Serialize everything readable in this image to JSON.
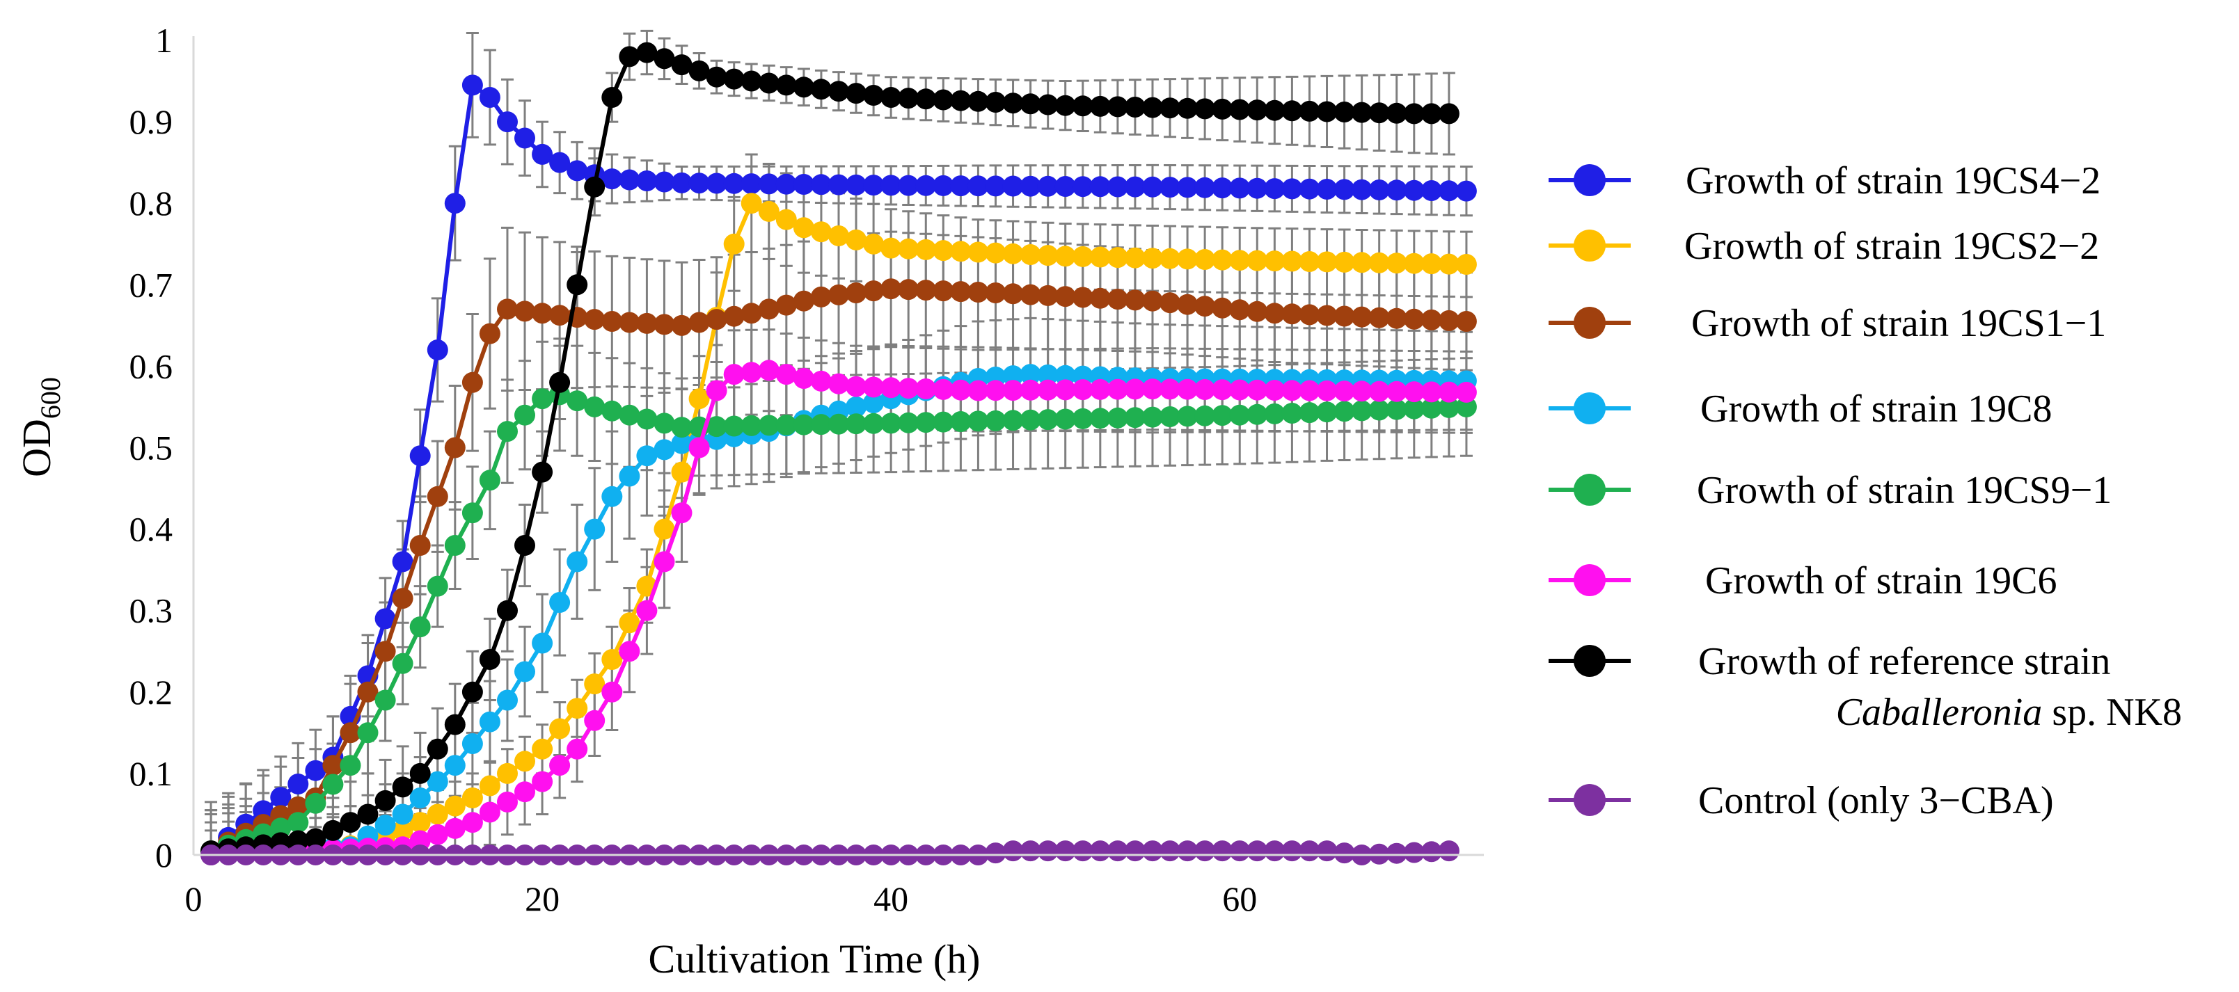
{
  "chart_data": {
    "type": "line",
    "title": "",
    "xlabel": "Cultivation Time (h)",
    "ylabel": {
      "main": "OD",
      "sub": "600"
    },
    "xlim": [
      0,
      74
    ],
    "ylim": [
      0,
      1
    ],
    "xticks": [
      "0",
      "20",
      "40",
      "60"
    ],
    "xtick_values": [
      0,
      20,
      40,
      60
    ],
    "yticks": [
      "0",
      "0.1",
      "0.2",
      "0.3",
      "0.4",
      "0.5",
      "0.6",
      "0.7",
      "0.8",
      "0.9",
      "1"
    ],
    "ytick_values": [
      0,
      0.1,
      0.2,
      0.3,
      0.4,
      0.5,
      0.6,
      0.7,
      0.8,
      0.9,
      1.0
    ],
    "grid": false,
    "legend_position": "right",
    "series": [
      {
        "name": "Growth of strain 19CS4−2",
        "color": "#1f1fe6",
        "points": [
          [
            1,
            0.005
          ],
          [
            8,
            0.12
          ],
          [
            10,
            0.22
          ],
          [
            12,
            0.36
          ],
          [
            14,
            0.62
          ],
          [
            15,
            0.8
          ],
          [
            16,
            0.945
          ],
          [
            17,
            0.93
          ],
          [
            18,
            0.9
          ],
          [
            20,
            0.86
          ],
          [
            22,
            0.84
          ],
          [
            24,
            0.83
          ],
          [
            28,
            0.825
          ],
          [
            40,
            0.822
          ],
          [
            55,
            0.82
          ],
          [
            73,
            0.815
          ]
        ],
        "error": [
          [
            12,
            0.05
          ],
          [
            15,
            0.07
          ],
          [
            20,
            0.04
          ],
          [
            28,
            0.02
          ],
          [
            45,
            0.025
          ],
          [
            73,
            0.03
          ]
        ]
      },
      {
        "name": "Growth of strain 19CS2−2",
        "color": "#ffc000",
        "points": [
          [
            1,
            0.0
          ],
          [
            8,
            0.005
          ],
          [
            12,
            0.03
          ],
          [
            16,
            0.07
          ],
          [
            20,
            0.13
          ],
          [
            22,
            0.18
          ],
          [
            24,
            0.24
          ],
          [
            26,
            0.33
          ],
          [
            28,
            0.47
          ],
          [
            29,
            0.56
          ],
          [
            30,
            0.66
          ],
          [
            31,
            0.75
          ],
          [
            32,
            0.8
          ],
          [
            33,
            0.79
          ],
          [
            35,
            0.77
          ],
          [
            40,
            0.745
          ],
          [
            50,
            0.735
          ],
          [
            60,
            0.73
          ],
          [
            73,
            0.725
          ]
        ],
        "error": [
          [
            20,
            0.03
          ],
          [
            28,
            0.05
          ],
          [
            32,
            0.06
          ],
          [
            45,
            0.04
          ],
          [
            60,
            0.04
          ],
          [
            73,
            0.04
          ]
        ]
      },
      {
        "name": "Growth of strain 19CS1−1",
        "color": "#a0400e",
        "points": [
          [
            1,
            0.005
          ],
          [
            7,
            0.07
          ],
          [
            9,
            0.15
          ],
          [
            11,
            0.25
          ],
          [
            13,
            0.38
          ],
          [
            15,
            0.5
          ],
          [
            16,
            0.58
          ],
          [
            17,
            0.64
          ],
          [
            18,
            0.67
          ],
          [
            20,
            0.665
          ],
          [
            24,
            0.655
          ],
          [
            28,
            0.65
          ],
          [
            32,
            0.665
          ],
          [
            36,
            0.685
          ],
          [
            40,
            0.695
          ],
          [
            46,
            0.69
          ],
          [
            55,
            0.68
          ],
          [
            62,
            0.665
          ],
          [
            73,
            0.655
          ]
        ],
        "error": [
          [
            13,
            0.06
          ],
          [
            18,
            0.1
          ],
          [
            24,
            0.08
          ],
          [
            40,
            0.07
          ],
          [
            60,
            0.06
          ],
          [
            73,
            0.06
          ]
        ]
      },
      {
        "name": "Growth of strain 19C8",
        "color": "#10b0f0",
        "points": [
          [
            1,
            0.0
          ],
          [
            9,
            0.01
          ],
          [
            12,
            0.05
          ],
          [
            15,
            0.11
          ],
          [
            18,
            0.19
          ],
          [
            20,
            0.26
          ],
          [
            22,
            0.36
          ],
          [
            24,
            0.44
          ],
          [
            26,
            0.49
          ],
          [
            28,
            0.505
          ],
          [
            30,
            0.51
          ],
          [
            33,
            0.52
          ],
          [
            36,
            0.54
          ],
          [
            40,
            0.56
          ],
          [
            45,
            0.585
          ],
          [
            48,
            0.59
          ],
          [
            55,
            0.585
          ],
          [
            73,
            0.582
          ]
        ],
        "error": [
          [
            18,
            0.05
          ],
          [
            24,
            0.08
          ],
          [
            30,
            0.06
          ],
          [
            45,
            0.07
          ],
          [
            73,
            0.06
          ]
        ]
      },
      {
        "name": "Growth of strain 19CS9−1",
        "color": "#1fb050",
        "points": [
          [
            1,
            0.005
          ],
          [
            6,
            0.04
          ],
          [
            9,
            0.11
          ],
          [
            11,
            0.19
          ],
          [
            13,
            0.28
          ],
          [
            15,
            0.38
          ],
          [
            17,
            0.46
          ],
          [
            18,
            0.52
          ],
          [
            20,
            0.56
          ],
          [
            21,
            0.565
          ],
          [
            23,
            0.55
          ],
          [
            26,
            0.535
          ],
          [
            28,
            0.525
          ],
          [
            32,
            0.527
          ],
          [
            40,
            0.53
          ],
          [
            50,
            0.535
          ],
          [
            60,
            0.54
          ],
          [
            73,
            0.55
          ]
        ],
        "error": [
          [
            14,
            0.05
          ],
          [
            20,
            0.07
          ],
          [
            28,
            0.06
          ],
          [
            45,
            0.06
          ],
          [
            73,
            0.06
          ]
        ]
      },
      {
        "name": "Growth of strain 19C6",
        "color": "#ff10ef",
        "points": [
          [
            1,
            0.0
          ],
          [
            12,
            0.01
          ],
          [
            16,
            0.04
          ],
          [
            20,
            0.09
          ],
          [
            22,
            0.13
          ],
          [
            24,
            0.2
          ],
          [
            26,
            0.3
          ],
          [
            28,
            0.42
          ],
          [
            29,
            0.5
          ],
          [
            30,
            0.57
          ],
          [
            31,
            0.59
          ],
          [
            33,
            0.595
          ],
          [
            35,
            0.585
          ],
          [
            38,
            0.575
          ],
          [
            45,
            0.57
          ],
          [
            55,
            0.572
          ],
          [
            73,
            0.568
          ]
        ],
        "error": [
          [
            22,
            0.04
          ],
          [
            28,
            0.06
          ],
          [
            33,
            0.05
          ],
          [
            50,
            0.05
          ],
          [
            73,
            0.05
          ]
        ]
      },
      {
        "name": "Growth of reference strain Caballeronia sp. NK8",
        "color": "#000000",
        "points": [
          [
            1,
            0.005
          ],
          [
            7,
            0.02
          ],
          [
            10,
            0.05
          ],
          [
            13,
            0.1
          ],
          [
            15,
            0.16
          ],
          [
            17,
            0.24
          ],
          [
            18,
            0.3
          ],
          [
            19,
            0.38
          ],
          [
            20,
            0.47
          ],
          [
            21,
            0.58
          ],
          [
            22,
            0.7
          ],
          [
            23,
            0.82
          ],
          [
            24,
            0.93
          ],
          [
            25,
            0.98
          ],
          [
            26,
            0.985
          ],
          [
            28,
            0.97
          ],
          [
            30,
            0.955
          ],
          [
            34,
            0.945
          ],
          [
            40,
            0.93
          ],
          [
            50,
            0.92
          ],
          [
            60,
            0.915
          ],
          [
            70,
            0.91
          ],
          [
            72,
            0.91
          ]
        ],
        "error": [
          [
            20,
            0.05
          ],
          [
            24,
            0.03
          ],
          [
            30,
            0.02
          ],
          [
            50,
            0.03
          ],
          [
            72,
            0.05
          ]
        ]
      },
      {
        "name": "Control (only 3−CBA)",
        "color": "#7d30a0",
        "points": [
          [
            1,
            0.0
          ],
          [
            20,
            0.0
          ],
          [
            45,
            0.0
          ],
          [
            47,
            0.005
          ],
          [
            55,
            0.005
          ],
          [
            65,
            0.005
          ],
          [
            67,
            0.0
          ],
          [
            70,
            0.003
          ],
          [
            72,
            0.005
          ]
        ],
        "error": [
          [
            30,
            0.003
          ],
          [
            60,
            0.005
          ]
        ]
      }
    ]
  },
  "legend": [
    {
      "line1": "Growth of strain 19CS4−2"
    },
    {
      "line1": "Growth of strain 19CS2−2"
    },
    {
      "line1": "Growth of strain 19CS1−1"
    },
    {
      "line1": "Growth of strain 19C8"
    },
    {
      "line1": "Growth of strain 19CS9−1"
    },
    {
      "line1": "Growth of strain 19C6"
    },
    {
      "line1": "Growth of reference strain",
      "line2_italic": "Caballeronia",
      "line2_rest": " sp. NK8"
    },
    {
      "line1": "Control (only 3−CBA)"
    }
  ]
}
